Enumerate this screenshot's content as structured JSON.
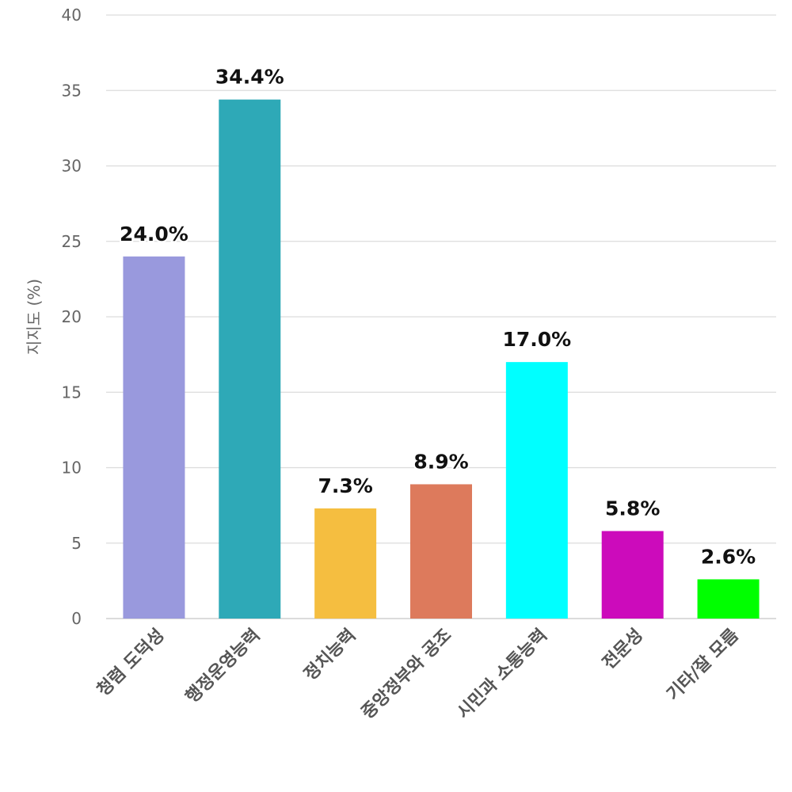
{
  "chart_data": {
    "type": "bar",
    "title": "",
    "xlabel": "",
    "ylabel": "지지도 (%)",
    "ylim": [
      0,
      40
    ],
    "yticks": [
      0,
      5,
      10,
      15,
      20,
      25,
      30,
      35,
      40
    ],
    "grid": true,
    "categories": [
      "청렴 도덕성",
      "행정운영능력",
      "정치능력",
      "중앙정부와 공조",
      "시민과 소통능력",
      "전문성",
      "기타/잘 모름"
    ],
    "values": [
      24.0,
      34.4,
      7.3,
      8.9,
      17.0,
      5.8,
      2.6
    ],
    "data_labels": [
      "24.0%",
      "34.4%",
      "7.3%",
      "8.9%",
      "17.0%",
      "5.8%",
      "2.6%"
    ],
    "colors": [
      "#9999dd",
      "#2ea9b7",
      "#f5be40",
      "#dd7a5c",
      "#00ffff",
      "#cc0bbb",
      "#00ff00"
    ]
  }
}
